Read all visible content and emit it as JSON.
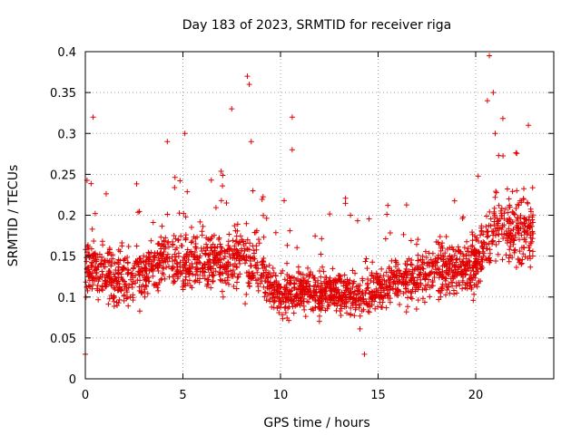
{
  "chart_data": {
    "type": "scatter",
    "title": "Day 183 of 2023, SRMTID for receiver riga",
    "xlabel": "GPS time / hours",
    "ylabel": "SRMTID / TECUs",
    "xlim": [
      0,
      24
    ],
    "ylim": [
      0,
      0.4
    ],
    "xticks": [
      0,
      5,
      10,
      15,
      20
    ],
    "yticks": [
      0,
      0.05,
      0.1,
      0.15,
      0.2,
      0.25,
      0.3,
      0.35,
      0.4
    ],
    "grid": true,
    "marker": "plus",
    "color": "#e00000",
    "series": [
      {
        "name": "SRMTID",
        "band": [
          [
            0.0,
            0.14,
            0.06
          ],
          [
            1.0,
            0.13,
            0.05
          ],
          [
            2.0,
            0.12,
            0.05
          ],
          [
            3.0,
            0.13,
            0.05
          ],
          [
            4.0,
            0.15,
            0.05
          ],
          [
            5.0,
            0.14,
            0.05
          ],
          [
            6.0,
            0.15,
            0.05
          ],
          [
            7.0,
            0.14,
            0.05
          ],
          [
            8.0,
            0.15,
            0.06
          ],
          [
            9.0,
            0.13,
            0.05
          ],
          [
            10.0,
            0.1,
            0.04
          ],
          [
            11.0,
            0.11,
            0.04
          ],
          [
            12.0,
            0.1,
            0.04
          ],
          [
            13.0,
            0.11,
            0.04
          ],
          [
            14.0,
            0.1,
            0.04
          ],
          [
            15.0,
            0.11,
            0.04
          ],
          [
            16.0,
            0.12,
            0.04
          ],
          [
            17.0,
            0.12,
            0.05
          ],
          [
            18.0,
            0.14,
            0.05
          ],
          [
            19.0,
            0.13,
            0.05
          ],
          [
            20.0,
            0.14,
            0.05
          ],
          [
            21.0,
            0.19,
            0.07
          ],
          [
            22.0,
            0.18,
            0.07
          ],
          [
            23.0,
            0.18,
            0.07
          ]
        ],
        "n": 2300,
        "notable_points": [
          {
            "x": 0.4,
            "y": 0.32
          },
          {
            "x": 4.2,
            "y": 0.29
          },
          {
            "x": 5.1,
            "y": 0.3
          },
          {
            "x": 7.5,
            "y": 0.33
          },
          {
            "x": 8.3,
            "y": 0.37
          },
          {
            "x": 8.4,
            "y": 0.36
          },
          {
            "x": 8.5,
            "y": 0.29
          },
          {
            "x": 10.6,
            "y": 0.32
          },
          {
            "x": 10.6,
            "y": 0.28
          },
          {
            "x": 20.7,
            "y": 0.395
          },
          {
            "x": 20.9,
            "y": 0.35
          },
          {
            "x": 20.6,
            "y": 0.34
          },
          {
            "x": 21.0,
            "y": 0.3
          },
          {
            "x": 22.7,
            "y": 0.31
          },
          {
            "x": 0.0,
            "y": 0.03
          },
          {
            "x": 14.3,
            "y": 0.03
          }
        ]
      }
    ]
  }
}
